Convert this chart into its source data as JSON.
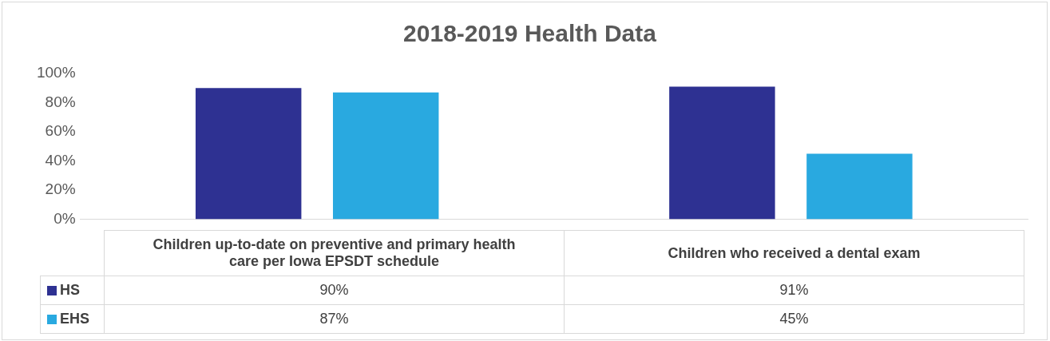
{
  "chart_data": {
    "type": "bar",
    "title": "2018-2019 Health Data",
    "categories": [
      "Children up-to-date on preventive and primary health care per Iowa EPSDT schedule",
      "Children who received a dental exam"
    ],
    "series": [
      {
        "name": "HS",
        "color": "#2e3192",
        "values": [
          90,
          91
        ],
        "value_labels": [
          "90%",
          "91%"
        ]
      },
      {
        "name": "EHS",
        "color": "#29a9e0",
        "values": [
          87,
          45
        ],
        "value_labels": [
          "87%",
          "45%"
        ]
      }
    ],
    "ylim": [
      0,
      100
    ],
    "yticks": [
      {
        "value": 0,
        "label": "0%"
      },
      {
        "value": 20,
        "label": "20%"
      },
      {
        "value": 40,
        "label": "40%"
      },
      {
        "value": 60,
        "label": "60%"
      },
      {
        "value": 80,
        "label": "80%"
      },
      {
        "value": 100,
        "label": "100%"
      }
    ],
    "grid": false,
    "legend": "bottom"
  }
}
